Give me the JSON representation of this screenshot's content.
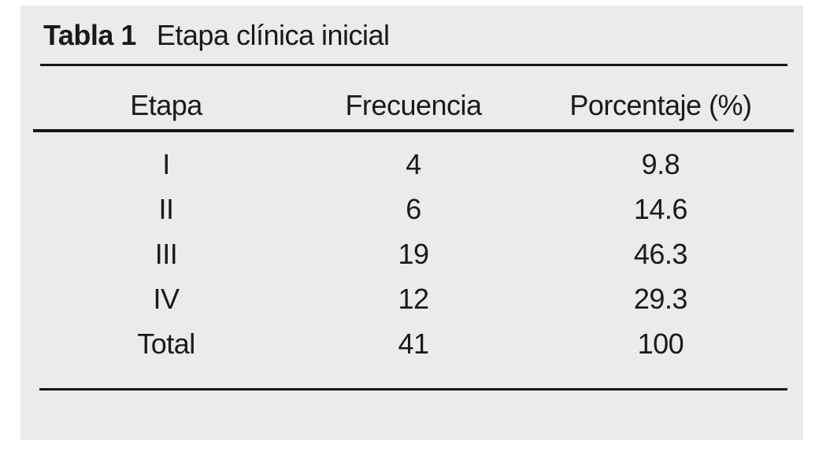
{
  "table": {
    "label": "Tabla 1",
    "title": "Etapa clínica inicial",
    "columns": [
      "Etapa",
      "Frecuencia",
      "Porcentaje (%)"
    ],
    "rows": [
      {
        "etapa": "I",
        "frecuencia": "4",
        "porcentaje": "9.8"
      },
      {
        "etapa": "II",
        "frecuencia": "6",
        "porcentaje": "14.6"
      },
      {
        "etapa": "III",
        "frecuencia": "19",
        "porcentaje": "46.3"
      },
      {
        "etapa": "IV",
        "frecuencia": "12",
        "porcentaje": "29.3"
      },
      {
        "etapa": "Total",
        "frecuencia": "41",
        "porcentaje": "100"
      }
    ]
  },
  "chart_data": {
    "type": "table",
    "title": "Tabla 1 Etapa clínica inicial",
    "categories": [
      "I",
      "II",
      "III",
      "IV",
      "Total"
    ],
    "series": [
      {
        "name": "Frecuencia",
        "values": [
          4,
          6,
          19,
          12,
          41
        ]
      },
      {
        "name": "Porcentaje (%)",
        "values": [
          9.8,
          14.6,
          46.3,
          29.3,
          100
        ]
      }
    ]
  },
  "colors": {
    "page_bg": "#ffffff",
    "panel_bg": "#ebebeb",
    "rule": "#161616",
    "text": "#1a1a1a"
  }
}
